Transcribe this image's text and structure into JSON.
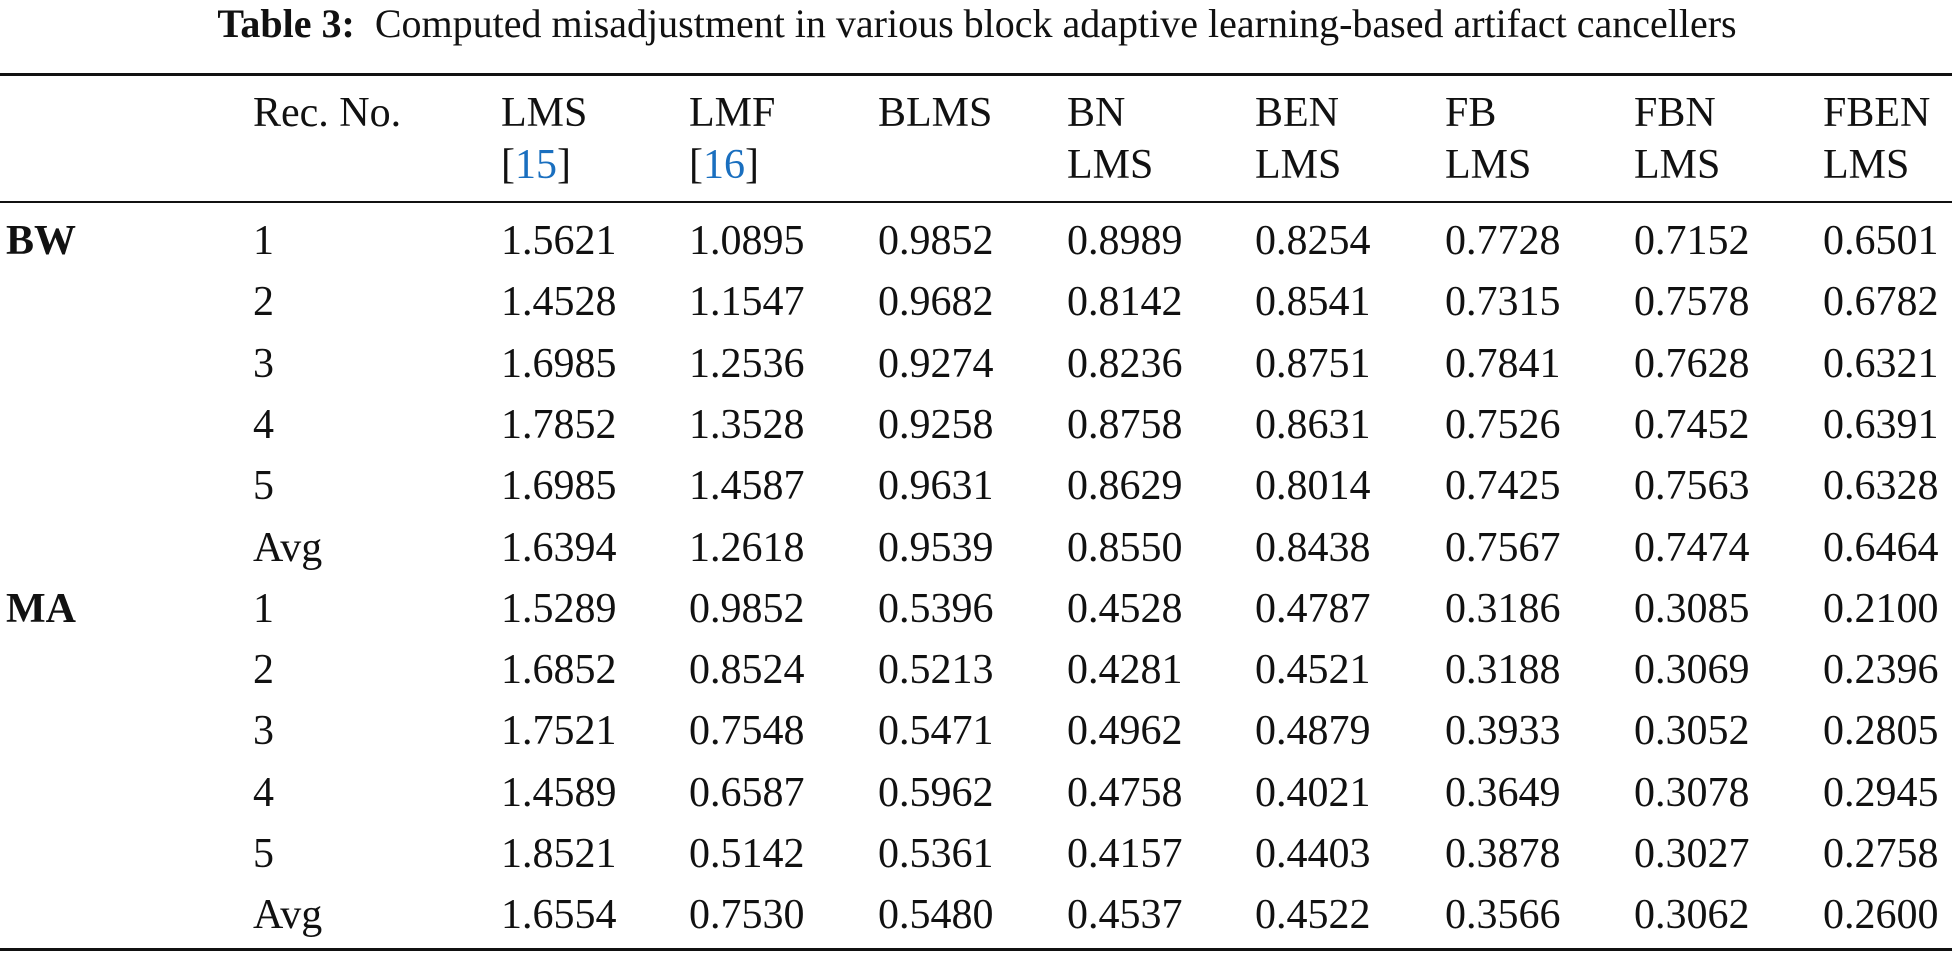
{
  "caption": {
    "label": "Table 3:",
    "text": "Computed misadjustment in various block adaptive learning-based artifact cancellers"
  },
  "table": {
    "header": [
      {
        "lines": [
          "Rec. No."
        ]
      },
      {
        "lines": [
          "LMS"
        ],
        "ref": {
          "open": "[",
          "num": "15",
          "close": "]"
        }
      },
      {
        "lines": [
          "LMF"
        ],
        "ref": {
          "open": "[",
          "num": "16",
          "close": "]"
        }
      },
      {
        "lines": [
          "BLMS"
        ]
      },
      {
        "lines": [
          "BN",
          "LMS"
        ]
      },
      {
        "lines": [
          "BEN",
          "LMS"
        ]
      },
      {
        "lines": [
          "FB",
          "LMS"
        ]
      },
      {
        "lines": [
          "FBN",
          "LMS"
        ]
      },
      {
        "lines": [
          "FBEN",
          "LMS"
        ]
      }
    ],
    "groups": [
      {
        "label": "BW",
        "rows": [
          [
            "1",
            "1.5621",
            "1.0895",
            "0.9852",
            "0.8989",
            "0.8254",
            "0.7728",
            "0.7152",
            "0.6501"
          ],
          [
            "2",
            "1.4528",
            "1.1547",
            "0.9682",
            "0.8142",
            "0.8541",
            "0.7315",
            "0.7578",
            "0.6782"
          ],
          [
            "3",
            "1.6985",
            "1.2536",
            "0.9274",
            "0.8236",
            "0.8751",
            "0.7841",
            "0.7628",
            "0.6321"
          ],
          [
            "4",
            "1.7852",
            "1.3528",
            "0.9258",
            "0.8758",
            "0.8631",
            "0.7526",
            "0.7452",
            "0.6391"
          ],
          [
            "5",
            "1.6985",
            "1.4587",
            "0.9631",
            "0.8629",
            "0.8014",
            "0.7425",
            "0.7563",
            "0.6328"
          ],
          [
            "Avg",
            "1.6394",
            "1.2618",
            "0.9539",
            "0.8550",
            "0.8438",
            "0.7567",
            "0.7474",
            "0.6464"
          ]
        ]
      },
      {
        "label": "MA",
        "rows": [
          [
            "1",
            "1.5289",
            "0.9852",
            "0.5396",
            "0.4528",
            "0.4787",
            "0.3186",
            "0.3085",
            "0.2100"
          ],
          [
            "2",
            "1.6852",
            "0.8524",
            "0.5213",
            "0.4281",
            "0.4521",
            "0.3188",
            "0.3069",
            "0.2396"
          ],
          [
            "3",
            "1.7521",
            "0.7548",
            "0.5471",
            "0.4962",
            "0.4879",
            "0.3933",
            "0.3052",
            "0.2805"
          ],
          [
            "4",
            "1.4589",
            "0.6587",
            "0.5962",
            "0.4758",
            "0.4021",
            "0.3649",
            "0.3078",
            "0.2945"
          ],
          [
            "5",
            "1.8521",
            "0.5142",
            "0.5361",
            "0.4157",
            "0.4403",
            "0.3878",
            "0.3027",
            "0.2758"
          ],
          [
            "Avg",
            "1.6554",
            "0.7530",
            "0.5480",
            "0.4537",
            "0.4522",
            "0.3566",
            "0.3062",
            "0.2600"
          ]
        ]
      }
    ]
  }
}
